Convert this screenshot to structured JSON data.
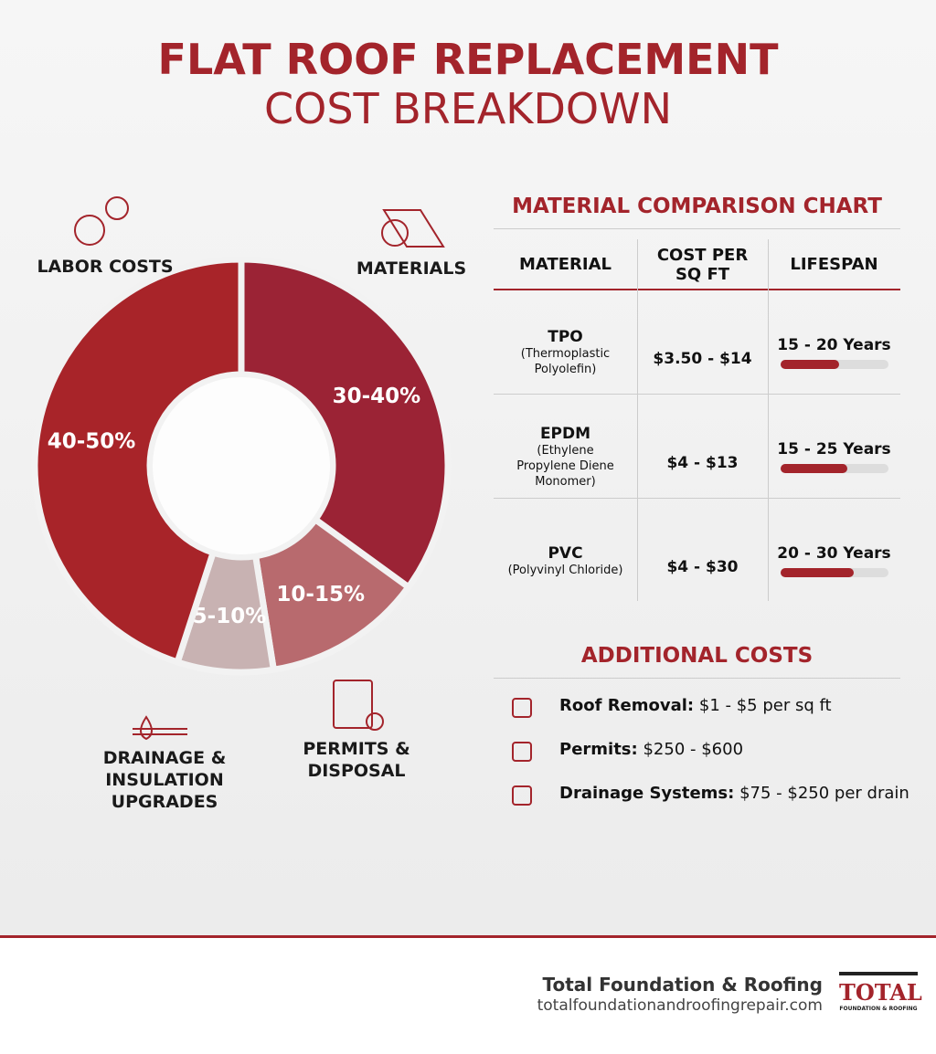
{
  "header": {
    "title": "FLAT ROOF REPLACEMENT",
    "subtitle": "COST BREAKDOWN"
  },
  "chart_data": {
    "type": "pie",
    "donut": true,
    "categories": [
      "MATERIALS",
      "PERMITS & DISPOSAL",
      "DRAINAGE & INSULATION UPGRADES",
      "LABOR COSTS"
    ],
    "values": [
      35,
      12.5,
      7.5,
      45
    ],
    "value_labels": [
      "30-40%",
      "10-15%",
      "5-10%",
      "40-50%"
    ],
    "colors": [
      "#9b2335",
      "#b86a6e",
      "#c8b2b2",
      "#a82429"
    ]
  },
  "material_table": {
    "title": "MATERIAL COMPARISON CHART",
    "columns": [
      "MATERIAL",
      "COST PER SQ FT",
      "LIFESPAN"
    ],
    "rows": [
      {
        "name": "TPO",
        "full_name": "(Thermoplastic Polyolefin)",
        "cost": "$3.50 - $14",
        "lifespan": "15 - 20 Years"
      },
      {
        "name": "EPDM",
        "full_name": "(Ethylene Propylene Diene Monomer)",
        "cost": "$4 - $13",
        "lifespan": "15 - 25 Years"
      },
      {
        "name": "PVC",
        "full_name": "(Polyvinyl Chloride)",
        "cost": "$4 - $30",
        "lifespan": "20 - 30 Years"
      }
    ]
  },
  "additional_costs": {
    "title": "ADDITIONAL COSTS",
    "items": [
      {
        "label": "Roof Removal:",
        "value": "$1 - $5 per sq ft"
      },
      {
        "label": "Permits:",
        "value": "$250 - $600"
      },
      {
        "label": "Drainage Systems:",
        "value": "$75 - $250 per drain"
      }
    ]
  },
  "footer": {
    "company": "Total Foundation & Roofing",
    "url": "totalfoundationandroofingrepair.com",
    "logo_text": "TOTAL",
    "logo_subtext": "FOUNDATION & ROOFING"
  }
}
